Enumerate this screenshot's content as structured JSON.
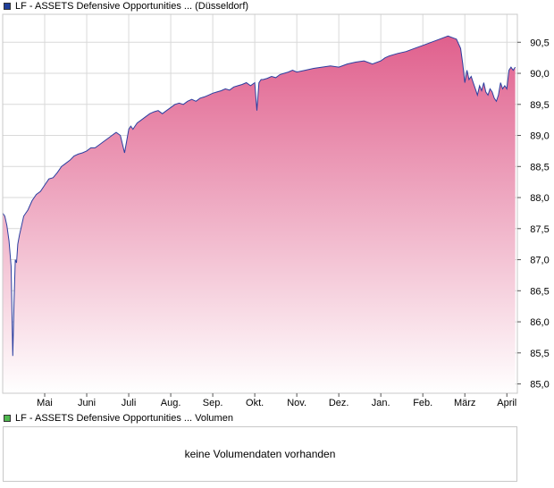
{
  "legend_price": {
    "label": "LF - ASSETS Defensive Opportunities ... (Düsseldorf)",
    "color": "#1f3f9a"
  },
  "legend_volume": {
    "label": "LF - ASSETS Defensive Opportunities ... Volumen",
    "color": "#4fb84f"
  },
  "volume_message": "keine Volumendaten vorhanden",
  "colors": {
    "line": "#2b3fa0",
    "fill_top": "#e0608d",
    "fill_bottom": "#ffffff",
    "grid": "#d9d9d9",
    "border": "#c8c8c8"
  },
  "chart_data": {
    "type": "area",
    "title": "",
    "xlabel": "",
    "ylabel": "",
    "ylim": [
      84.85,
      90.95
    ],
    "xlim": [
      0,
      12.25
    ],
    "y_ticks": [
      "85,0",
      "85,5",
      "86,0",
      "86,5",
      "87,0",
      "87,5",
      "88,0",
      "88,5",
      "89,0",
      "89,5",
      "90,0",
      "90,5"
    ],
    "y_tick_values": [
      85.0,
      85.5,
      86.0,
      86.5,
      87.0,
      87.5,
      88.0,
      88.5,
      89.0,
      89.5,
      90.0,
      90.5
    ],
    "y_axis_position": "right",
    "x_ticks": [
      "Mai",
      "Juni",
      "Juli",
      "Aug.",
      "Sep.",
      "Okt.",
      "Nov.",
      "Dez.",
      "Jan.",
      "Feb.",
      "März",
      "April"
    ],
    "x_tick_values": [
      1,
      2,
      3,
      4,
      5,
      6,
      7,
      8,
      9,
      10,
      11,
      12
    ],
    "grid": true,
    "series": [
      {
        "x": [
          0.0,
          0.05,
          0.1,
          0.15,
          0.2,
          0.24,
          0.27,
          0.3,
          0.33,
          0.36,
          0.4,
          0.45,
          0.5,
          0.55,
          0.6,
          0.7,
          0.8,
          0.9,
          1.0,
          1.1,
          1.2,
          1.3,
          1.4,
          1.5,
          1.6,
          1.7,
          1.8,
          1.9,
          2.0,
          2.1,
          2.2,
          2.3,
          2.4,
          2.5,
          2.6,
          2.7,
          2.8,
          2.9,
          3.0,
          3.05,
          3.1,
          3.15,
          3.2,
          3.3,
          3.4,
          3.5,
          3.6,
          3.7,
          3.8,
          3.9,
          4.0,
          4.1,
          4.2,
          4.3,
          4.4,
          4.5,
          4.6,
          4.7,
          4.8,
          4.9,
          5.0,
          5.1,
          5.2,
          5.3,
          5.4,
          5.5,
          5.6,
          5.7,
          5.8,
          5.9,
          6.0,
          6.05,
          6.1,
          6.15,
          6.2,
          6.3,
          6.4,
          6.5,
          6.6,
          6.7,
          6.8,
          6.9,
          7.0,
          7.2,
          7.4,
          7.6,
          7.8,
          8.0,
          8.2,
          8.4,
          8.6,
          8.8,
          9.0,
          9.1,
          9.2,
          9.3,
          9.4,
          9.6,
          9.8,
          10.0,
          10.2,
          10.4,
          10.6,
          10.8,
          10.9,
          10.95,
          11.0,
          11.05,
          11.1,
          11.15,
          11.2,
          11.25,
          11.3,
          11.35,
          11.4,
          11.45,
          11.5,
          11.55,
          11.6,
          11.65,
          11.7,
          11.75,
          11.8,
          11.85,
          11.9,
          11.95,
          12.0,
          12.05,
          12.1,
          12.15,
          12.2
        ],
        "y": [
          87.75,
          87.7,
          87.55,
          87.3,
          86.9,
          85.45,
          86.3,
          87.0,
          86.95,
          87.25,
          87.4,
          87.55,
          87.7,
          87.75,
          87.8,
          87.95,
          88.05,
          88.1,
          88.2,
          88.3,
          88.32,
          88.4,
          88.5,
          88.55,
          88.6,
          88.67,
          88.7,
          88.72,
          88.75,
          88.8,
          88.8,
          88.85,
          88.9,
          88.95,
          89.0,
          89.05,
          89.0,
          88.72,
          89.1,
          89.15,
          89.1,
          89.15,
          89.2,
          89.25,
          89.3,
          89.35,
          89.38,
          89.4,
          89.35,
          89.4,
          89.45,
          89.5,
          89.52,
          89.5,
          89.55,
          89.58,
          89.55,
          89.6,
          89.62,
          89.65,
          89.68,
          89.7,
          89.72,
          89.75,
          89.73,
          89.78,
          89.8,
          89.82,
          89.85,
          89.8,
          89.85,
          89.4,
          89.85,
          89.9,
          89.9,
          89.92,
          89.95,
          89.93,
          89.98,
          90.0,
          90.02,
          90.05,
          90.02,
          90.05,
          90.08,
          90.1,
          90.12,
          90.1,
          90.15,
          90.18,
          90.2,
          90.15,
          90.2,
          90.25,
          90.28,
          90.3,
          90.32,
          90.35,
          90.4,
          90.45,
          90.5,
          90.55,
          90.6,
          90.55,
          90.4,
          90.15,
          89.85,
          90.05,
          89.9,
          89.95,
          89.85,
          89.75,
          89.65,
          89.8,
          89.72,
          89.85,
          89.7,
          89.65,
          89.75,
          89.7,
          89.6,
          89.55,
          89.65,
          89.85,
          89.75,
          89.8,
          89.75,
          90.05,
          90.1,
          90.05,
          90.1
        ]
      }
    ]
  }
}
